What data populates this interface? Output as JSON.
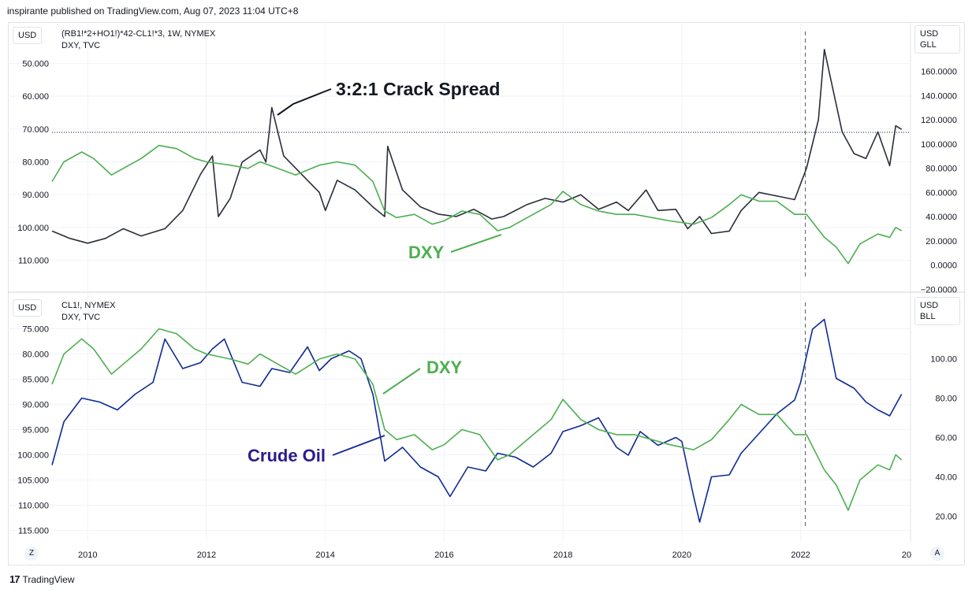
{
  "header": {
    "publisher_text": "inspirante published on TradingView.com, Aug 07, 2023 11:04 UTC+8"
  },
  "footer": {
    "brand": "TradingView",
    "z_button": "Z",
    "a_button": "A"
  },
  "colors": {
    "dxy": "#4caf50",
    "crack": "#2a2e39",
    "crude": "#0d2a94",
    "crude_label": "#2b1b8f",
    "grid": "#f0f3fa"
  },
  "top_pane": {
    "left_unit": "USD",
    "right_unit_line1": "USD",
    "right_unit_line2": "GLL",
    "legend_line1": "(RB1!*2+HO1!)*42-CL1!*3, 1W, NYMEX",
    "legend_line2": "DXY, TVC",
    "annotation_crack": "3:2:1 Crack Spread",
    "annotation_dxy": "DXY"
  },
  "bottom_pane": {
    "left_unit": "USD",
    "right_unit_line1": "USD",
    "right_unit_line2": "BLL",
    "legend_line1": "CL1!, NYMEX",
    "legend_line2": "DXY, TVC",
    "annotation_dxy": "DXY",
    "annotation_crude": "Crude Oil"
  },
  "chart_data": [
    {
      "type": "line",
      "pane": "top",
      "x_ticks": [
        "2010",
        "2012",
        "2014",
        "2016",
        "2018",
        "2020",
        "2022",
        "20"
      ],
      "left_axis": {
        "inverted": true,
        "ticks": [
          "50.000",
          "60.000",
          "70.000",
          "80.000",
          "90.000",
          "100.000",
          "110.000"
        ]
      },
      "right_axis": {
        "ticks": [
          "160.0000",
          "140.0000",
          "120.0000",
          "100.0000",
          "80.0000",
          "60.0000",
          "40.0000",
          "20.0000",
          "0.0000",
          "−20.0000"
        ]
      },
      "reference_level": 71,
      "series": [
        {
          "name": "(RB1!*2+HO1!)*42-CL1!*3",
          "axis": "right",
          "points": [
            [
              2009.4,
              28
            ],
            [
              2009.7,
              22
            ],
            [
              2010.0,
              18
            ],
            [
              2010.3,
              22
            ],
            [
              2010.6,
              30
            ],
            [
              2010.9,
              24
            ],
            [
              2011.3,
              30
            ],
            [
              2011.6,
              45
            ],
            [
              2011.9,
              75
            ],
            [
              2012.1,
              90
            ],
            [
              2012.2,
              40
            ],
            [
              2012.4,
              55
            ],
            [
              2012.6,
              85
            ],
            [
              2012.9,
              95
            ],
            [
              2013.0,
              85
            ],
            [
              2013.1,
              130
            ],
            [
              2013.3,
              90
            ],
            [
              2013.6,
              75
            ],
            [
              2013.9,
              60
            ],
            [
              2014.0,
              45
            ],
            [
              2014.2,
              70
            ],
            [
              2014.5,
              62
            ],
            [
              2014.8,
              48
            ],
            [
              2015.0,
              40
            ],
            [
              2015.05,
              98
            ],
            [
              2015.3,
              62
            ],
            [
              2015.6,
              48
            ],
            [
              2015.9,
              42
            ],
            [
              2016.2,
              40
            ],
            [
              2016.5,
              46
            ],
            [
              2016.8,
              38
            ],
            [
              2017.0,
              40
            ],
            [
              2017.4,
              50
            ],
            [
              2017.7,
              55
            ],
            [
              2018.0,
              52
            ],
            [
              2018.3,
              58
            ],
            [
              2018.6,
              46
            ],
            [
              2018.9,
              52
            ],
            [
              2019.1,
              45
            ],
            [
              2019.4,
              62
            ],
            [
              2019.6,
              45
            ],
            [
              2019.9,
              46
            ],
            [
              2020.1,
              30
            ],
            [
              2020.3,
              40
            ],
            [
              2020.5,
              26
            ],
            [
              2020.8,
              28
            ],
            [
              2021.0,
              45
            ],
            [
              2021.3,
              60
            ],
            [
              2021.7,
              56
            ],
            [
              2021.9,
              54
            ],
            [
              2022.1,
              80
            ],
            [
              2022.3,
              120
            ],
            [
              2022.4,
              178
            ],
            [
              2022.5,
              155
            ],
            [
              2022.7,
              110
            ],
            [
              2022.9,
              92
            ],
            [
              2023.1,
              88
            ],
            [
              2023.3,
              110
            ],
            [
              2023.5,
              82
            ],
            [
              2023.6,
              115
            ],
            [
              2023.7,
              112
            ]
          ]
        },
        {
          "name": "DXY",
          "axis": "left",
          "points": [
            [
              2009.4,
              86
            ],
            [
              2009.6,
              80
            ],
            [
              2009.9,
              77
            ],
            [
              2010.1,
              79
            ],
            [
              2010.4,
              84
            ],
            [
              2010.6,
              82
            ],
            [
              2010.9,
              79
            ],
            [
              2011.2,
              75
            ],
            [
              2011.5,
              76
            ],
            [
              2011.8,
              79
            ],
            [
              2012.0,
              80
            ],
            [
              2012.4,
              81
            ],
            [
              2012.7,
              82
            ],
            [
              2012.9,
              80
            ],
            [
              2013.2,
              82
            ],
            [
              2013.5,
              84
            ],
            [
              2013.9,
              81
            ],
            [
              2014.2,
              80
            ],
            [
              2014.5,
              81
            ],
            [
              2014.8,
              86
            ],
            [
              2015.0,
              95
            ],
            [
              2015.2,
              97
            ],
            [
              2015.5,
              96
            ],
            [
              2015.8,
              99
            ],
            [
              2016.0,
              98
            ],
            [
              2016.3,
              95
            ],
            [
              2016.6,
              96
            ],
            [
              2016.9,
              101
            ],
            [
              2017.1,
              100
            ],
            [
              2017.5,
              96
            ],
            [
              2017.8,
              93
            ],
            [
              2018.0,
              89
            ],
            [
              2018.3,
              93
            ],
            [
              2018.6,
              95
            ],
            [
              2018.9,
              96
            ],
            [
              2019.2,
              96
            ],
            [
              2019.5,
              97
            ],
            [
              2019.8,
              98
            ],
            [
              2020.2,
              99
            ],
            [
              2020.5,
              97
            ],
            [
              2020.8,
              93
            ],
            [
              2021.0,
              90
            ],
            [
              2021.3,
              92
            ],
            [
              2021.6,
              92
            ],
            [
              2021.9,
              96
            ],
            [
              2022.1,
              96
            ],
            [
              2022.4,
              103
            ],
            [
              2022.6,
              106
            ],
            [
              2022.8,
              111
            ],
            [
              2023.0,
              105
            ],
            [
              2023.3,
              102
            ],
            [
              2023.5,
              103
            ],
            [
              2023.6,
              100
            ],
            [
              2023.7,
              101
            ]
          ]
        }
      ]
    },
    {
      "type": "line",
      "pane": "bottom",
      "x_ticks": [
        "2010",
        "2012",
        "2014",
        "2016",
        "2018",
        "2020",
        "2022",
        "20"
      ],
      "left_axis": {
        "inverted": true,
        "ticks": [
          "75.000",
          "80.000",
          "85.000",
          "90.000",
          "95.000",
          "100.000",
          "105.000",
          "110.000",
          "115.000"
        ]
      },
      "right_axis": {
        "ticks": [
          "100.00",
          "80.00",
          "60.00",
          "40.00",
          "20.00"
        ]
      },
      "series": [
        {
          "name": "CL1!",
          "axis": "right",
          "points": [
            [
              2009.4,
              46
            ],
            [
              2009.6,
              68
            ],
            [
              2009.9,
              80
            ],
            [
              2010.2,
              78
            ],
            [
              2010.5,
              74
            ],
            [
              2010.8,
              82
            ],
            [
              2011.1,
              88
            ],
            [
              2011.3,
              110
            ],
            [
              2011.6,
              95
            ],
            [
              2011.9,
              98
            ],
            [
              2012.1,
              105
            ],
            [
              2012.3,
              110
            ],
            [
              2012.6,
              88
            ],
            [
              2012.9,
              86
            ],
            [
              2013.1,
              95
            ],
            [
              2013.4,
              93
            ],
            [
              2013.7,
              106
            ],
            [
              2013.9,
              94
            ],
            [
              2014.1,
              100
            ],
            [
              2014.4,
              104
            ],
            [
              2014.6,
              100
            ],
            [
              2014.8,
              82
            ],
            [
              2015.0,
              48
            ],
            [
              2015.3,
              55
            ],
            [
              2015.6,
              45
            ],
            [
              2015.9,
              40
            ],
            [
              2016.1,
              30
            ],
            [
              2016.4,
              45
            ],
            [
              2016.7,
              43
            ],
            [
              2016.9,
              52
            ],
            [
              2017.2,
              50
            ],
            [
              2017.5,
              45
            ],
            [
              2017.8,
              52
            ],
            [
              2018.0,
              63
            ],
            [
              2018.3,
              66
            ],
            [
              2018.6,
              70
            ],
            [
              2018.9,
              55
            ],
            [
              2019.1,
              51
            ],
            [
              2019.3,
              63
            ],
            [
              2019.6,
              56
            ],
            [
              2019.9,
              60
            ],
            [
              2020.0,
              58
            ],
            [
              2020.2,
              30
            ],
            [
              2020.3,
              17
            ],
            [
              2020.5,
              40
            ],
            [
              2020.8,
              41
            ],
            [
              2021.0,
              52
            ],
            [
              2021.3,
              62
            ],
            [
              2021.6,
              72
            ],
            [
              2021.9,
              79
            ],
            [
              2022.0,
              88
            ],
            [
              2022.2,
              115
            ],
            [
              2022.4,
              120
            ],
            [
              2022.6,
              90
            ],
            [
              2022.9,
              85
            ],
            [
              2023.1,
              78
            ],
            [
              2023.3,
              74
            ],
            [
              2023.5,
              71
            ],
            [
              2023.7,
              82
            ]
          ]
        },
        {
          "name": "DXY",
          "axis": "left",
          "points": [
            [
              2009.4,
              86
            ],
            [
              2009.6,
              80
            ],
            [
              2009.9,
              77
            ],
            [
              2010.1,
              79
            ],
            [
              2010.4,
              84
            ],
            [
              2010.6,
              82
            ],
            [
              2010.9,
              79
            ],
            [
              2011.2,
              75
            ],
            [
              2011.5,
              76
            ],
            [
              2011.8,
              79
            ],
            [
              2012.0,
              80
            ],
            [
              2012.4,
              81
            ],
            [
              2012.7,
              82
            ],
            [
              2012.9,
              80
            ],
            [
              2013.2,
              82
            ],
            [
              2013.5,
              84
            ],
            [
              2013.9,
              81
            ],
            [
              2014.2,
              80
            ],
            [
              2014.5,
              81
            ],
            [
              2014.8,
              86
            ],
            [
              2015.0,
              95
            ],
            [
              2015.2,
              97
            ],
            [
              2015.5,
              96
            ],
            [
              2015.8,
              99
            ],
            [
              2016.0,
              98
            ],
            [
              2016.3,
              95
            ],
            [
              2016.6,
              96
            ],
            [
              2016.9,
              101
            ],
            [
              2017.1,
              100
            ],
            [
              2017.5,
              96
            ],
            [
              2017.8,
              93
            ],
            [
              2018.0,
              89
            ],
            [
              2018.3,
              93
            ],
            [
              2018.6,
              95
            ],
            [
              2018.9,
              96
            ],
            [
              2019.2,
              96
            ],
            [
              2019.5,
              97
            ],
            [
              2019.8,
              98
            ],
            [
              2020.2,
              99
            ],
            [
              2020.5,
              97
            ],
            [
              2020.8,
              93
            ],
            [
              2021.0,
              90
            ],
            [
              2021.3,
              92
            ],
            [
              2021.6,
              92
            ],
            [
              2021.9,
              96
            ],
            [
              2022.1,
              96
            ],
            [
              2022.4,
              103
            ],
            [
              2022.6,
              106
            ],
            [
              2022.8,
              111
            ],
            [
              2023.0,
              105
            ],
            [
              2023.3,
              102
            ],
            [
              2023.5,
              103
            ],
            [
              2023.6,
              100
            ],
            [
              2023.7,
              101
            ]
          ]
        }
      ]
    }
  ]
}
